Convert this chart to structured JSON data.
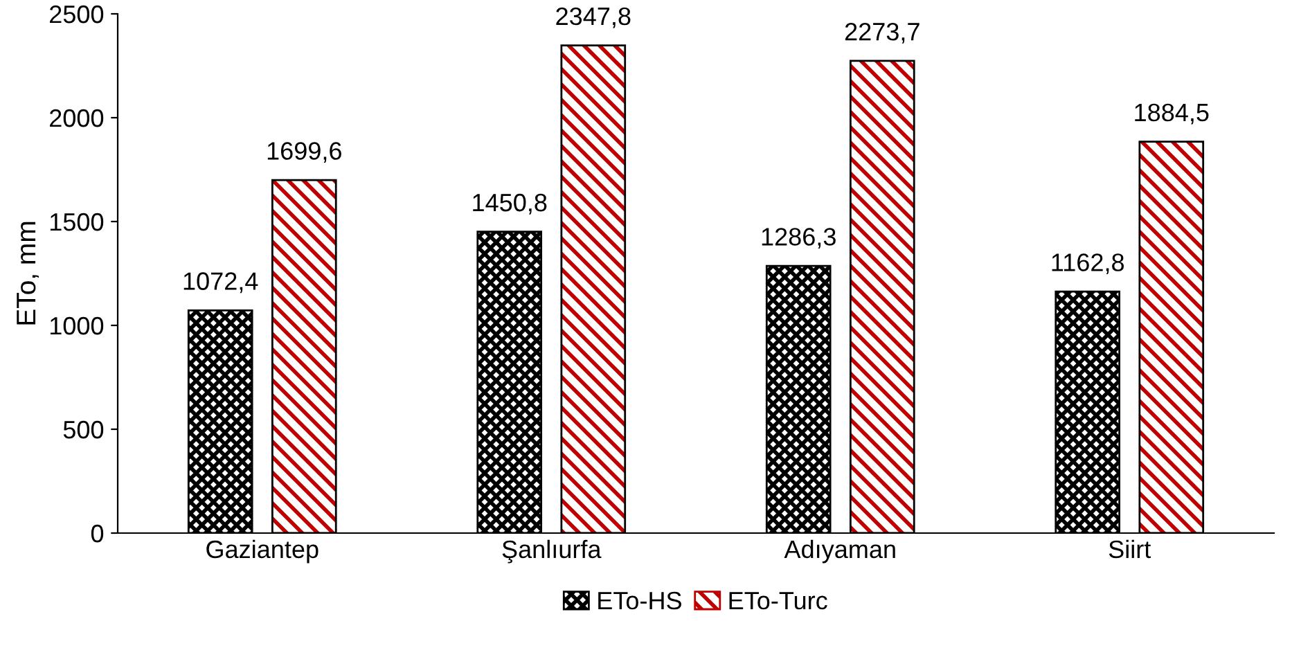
{
  "chart_data": {
    "type": "bar",
    "ylabel": "ETo, mm",
    "categories": [
      "Gaziantep",
      "Şanlıurfa",
      "Adıyaman",
      "Siirt"
    ],
    "series": [
      {
        "name": "ETo-HS",
        "color": "#000000",
        "values": [
          1072.4,
          1450.8,
          1286.3,
          1162.8
        ],
        "value_labels": [
          "1072,4",
          "1450,8",
          "1286,3",
          "1162,8"
        ]
      },
      {
        "name": "ETo-Turc",
        "color": "#c00000",
        "values": [
          1699.6,
          2347.8,
          2273.7,
          1884.5
        ],
        "value_labels": [
          "1699,6",
          "2347,8",
          "2273,7",
          "1884,5"
        ]
      }
    ],
    "ylim": [
      0,
      2500
    ],
    "yticks": [
      0,
      500,
      1000,
      1500,
      2000,
      2500
    ],
    "grid": false,
    "legend": "bottom"
  }
}
